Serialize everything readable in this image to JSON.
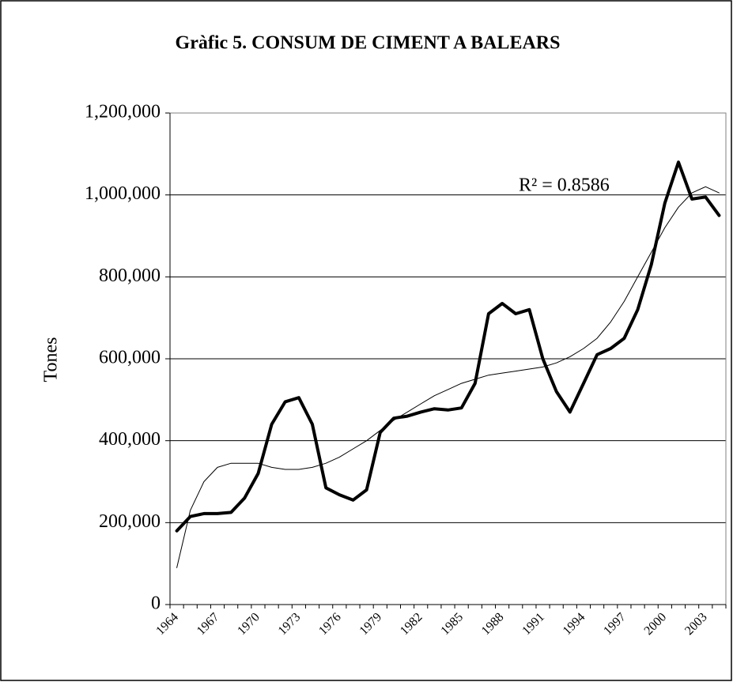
{
  "chart_data": {
    "type": "line",
    "title": "Gràfic 5. CONSUM DE CIMENT A BALEARS",
    "y_label": "Tones",
    "annotation": "R² = 0.8586",
    "categories": [
      "1964",
      null,
      null,
      "1967",
      null,
      null,
      "1970",
      null,
      null,
      "1973",
      null,
      null,
      "1976",
      null,
      null,
      "1979",
      null,
      null,
      "1982",
      null,
      null,
      "1985",
      null,
      null,
      "1988",
      null,
      null,
      "1991",
      null,
      null,
      "1994",
      null,
      null,
      "1997",
      null,
      null,
      "2000",
      null,
      null,
      "2003",
      null
    ],
    "series": [
      {
        "color": "#000000",
        "width": 4,
        "values": [
          180000,
          215000,
          222000,
          222000,
          225000,
          260000,
          320000,
          440000,
          495000,
          505000,
          440000,
          285000,
          268000,
          255000,
          280000,
          420000,
          455000,
          460000,
          470000,
          478000,
          475000,
          480000,
          540000,
          710000,
          735000,
          710000,
          720000,
          600000,
          520000,
          470000,
          540000,
          610000,
          625000,
          650000,
          720000,
          830000,
          980000,
          1080000,
          990000,
          995000,
          950000
        ]
      },
      {
        "color": "#000000",
        "width": 1,
        "values": [
          90000,
          230000,
          300000,
          335000,
          345000,
          345000,
          345000,
          335000,
          330000,
          330000,
          335000,
          345000,
          360000,
          380000,
          400000,
          425000,
          450000,
          470000,
          490000,
          510000,
          525000,
          540000,
          550000,
          560000,
          565000,
          570000,
          575000,
          580000,
          590000,
          605000,
          625000,
          650000,
          690000,
          740000,
          800000,
          860000,
          920000,
          970000,
          1005000,
          1020000,
          1005000
        ]
      }
    ],
    "ylim": [
      0,
      1200000
    ],
    "yticks": [
      0,
      {
        "value": 200000,
        "label": "200,000"
      },
      {
        "value": 400000,
        "label": "400,000"
      },
      {
        "value": 600000,
        "label": "600,000"
      },
      {
        "value": 800000,
        "label": "800,000"
      },
      {
        "value": 1000000,
        "label": "1,000,000"
      },
      {
        "value": 1200000,
        "label": "1,200,000"
      }
    ],
    "grid": true
  }
}
